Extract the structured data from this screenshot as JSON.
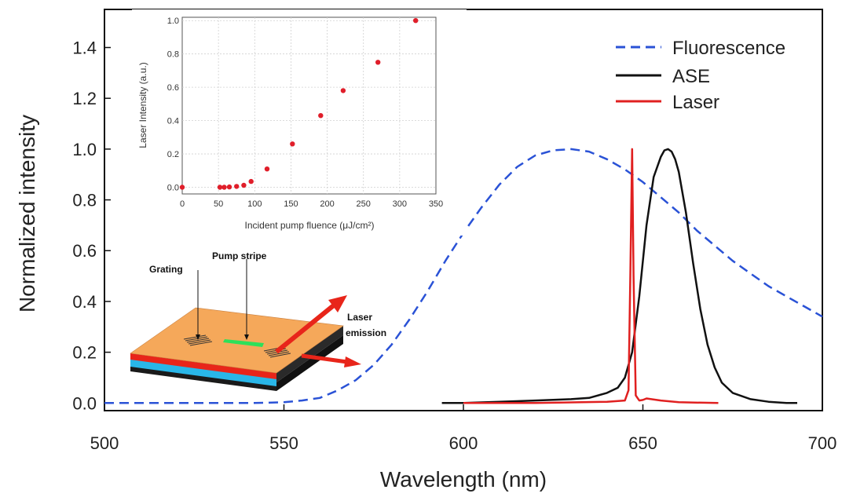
{
  "chart_data": [
    {
      "type": "line",
      "xlabel": "Wavelength (nm)",
      "ylabel": "Normalized intensity",
      "xlim": [
        500,
        700
      ],
      "ylim": [
        -0.03,
        1.55
      ],
      "xticks": [
        "500",
        "550",
        "600",
        "650",
        "700"
      ],
      "yticks": [
        "0.0",
        "0.2",
        "0.4",
        "0.6",
        "0.8",
        "1.0",
        "1.2",
        "1.4"
      ],
      "legend_position": "top-right",
      "series": [
        {
          "name": "Fluorescence",
          "style": "dashed",
          "color": "#2a52d6",
          "x": [
            500,
            520,
            540,
            545,
            550,
            555,
            560,
            565,
            570,
            575,
            580,
            585,
            590,
            595,
            600,
            605,
            610,
            615,
            620,
            625,
            630,
            635,
            640,
            645,
            650,
            655,
            660,
            665,
            670,
            675,
            680,
            685,
            690,
            695,
            700
          ],
          "y": [
            0.0,
            0.0,
            0.0,
            0.001,
            0.003,
            0.01,
            0.02,
            0.05,
            0.09,
            0.15,
            0.23,
            0.33,
            0.44,
            0.56,
            0.67,
            0.77,
            0.86,
            0.93,
            0.975,
            0.995,
            1.0,
            0.99,
            0.96,
            0.92,
            0.87,
            0.81,
            0.75,
            0.68,
            0.62,
            0.56,
            0.51,
            0.46,
            0.42,
            0.38,
            0.34
          ]
        },
        {
          "name": "ASE",
          "style": "solid",
          "color": "#111111",
          "x": [
            594,
            600,
            610,
            620,
            630,
            635,
            640,
            643,
            645,
            647,
            649,
            651,
            653,
            655,
            656,
            657,
            658,
            659,
            660,
            662,
            664,
            666,
            668,
            670,
            672,
            675,
            680,
            685,
            690,
            693
          ],
          "y": [
            0.0,
            0.0,
            0.005,
            0.01,
            0.015,
            0.02,
            0.04,
            0.06,
            0.1,
            0.2,
            0.42,
            0.7,
            0.89,
            0.97,
            0.995,
            1.0,
            0.99,
            0.96,
            0.91,
            0.75,
            0.55,
            0.37,
            0.23,
            0.14,
            0.08,
            0.04,
            0.015,
            0.005,
            0.0,
            0.0
          ]
        },
        {
          "name": "Laser",
          "style": "solid",
          "color": "#e02020",
          "x": [
            600,
            620,
            640,
            645,
            646,
            646.5,
            647,
            647.4,
            648,
            649,
            650,
            651,
            655,
            660,
            671
          ],
          "y": [
            0.0,
            0.0,
            0.005,
            0.01,
            0.05,
            0.5,
            1.0,
            0.5,
            0.03,
            0.01,
            0.012,
            0.018,
            0.01,
            0.003,
            0.0
          ]
        }
      ]
    },
    {
      "type": "scatter",
      "xlabel": "Incident pump fluence (μJ/cm²)",
      "ylabel": "Laser Intensity (a.u.)",
      "xlim": [
        0,
        350
      ],
      "ylim": [
        -0.04,
        1.02
      ],
      "xticks": [
        "0",
        "50",
        "100",
        "150",
        "200",
        "250",
        "300",
        "350"
      ],
      "yticks": [
        "0.0",
        "0.2",
        "0.4",
        "0.6",
        "0.8",
        "1.0"
      ],
      "color": "#e01e2a",
      "x": [
        0,
        52,
        58,
        65,
        75,
        85,
        95,
        117,
        152,
        191,
        222,
        270,
        322
      ],
      "y": [
        0.0,
        0.0,
        0.0,
        0.002,
        0.005,
        0.012,
        0.035,
        0.11,
        0.26,
        0.43,
        0.58,
        0.75,
        1.0
      ]
    }
  ],
  "diagram": {
    "grating_label": "Grating",
    "pump_stripe_label": "Pump stripe",
    "laser_label_line1": "Laser",
    "laser_label_line2": "emission"
  },
  "colors": {
    "fluorescence": "#2a52d6",
    "ase": "#111111",
    "laser": "#e02020",
    "inset_points": "#e01e2a",
    "chip_top": "#f5a85a",
    "chip_red_layer": "#e8251a",
    "chip_blue_layer": "#29b6e8",
    "pump_stripe": "#2ee05a"
  }
}
